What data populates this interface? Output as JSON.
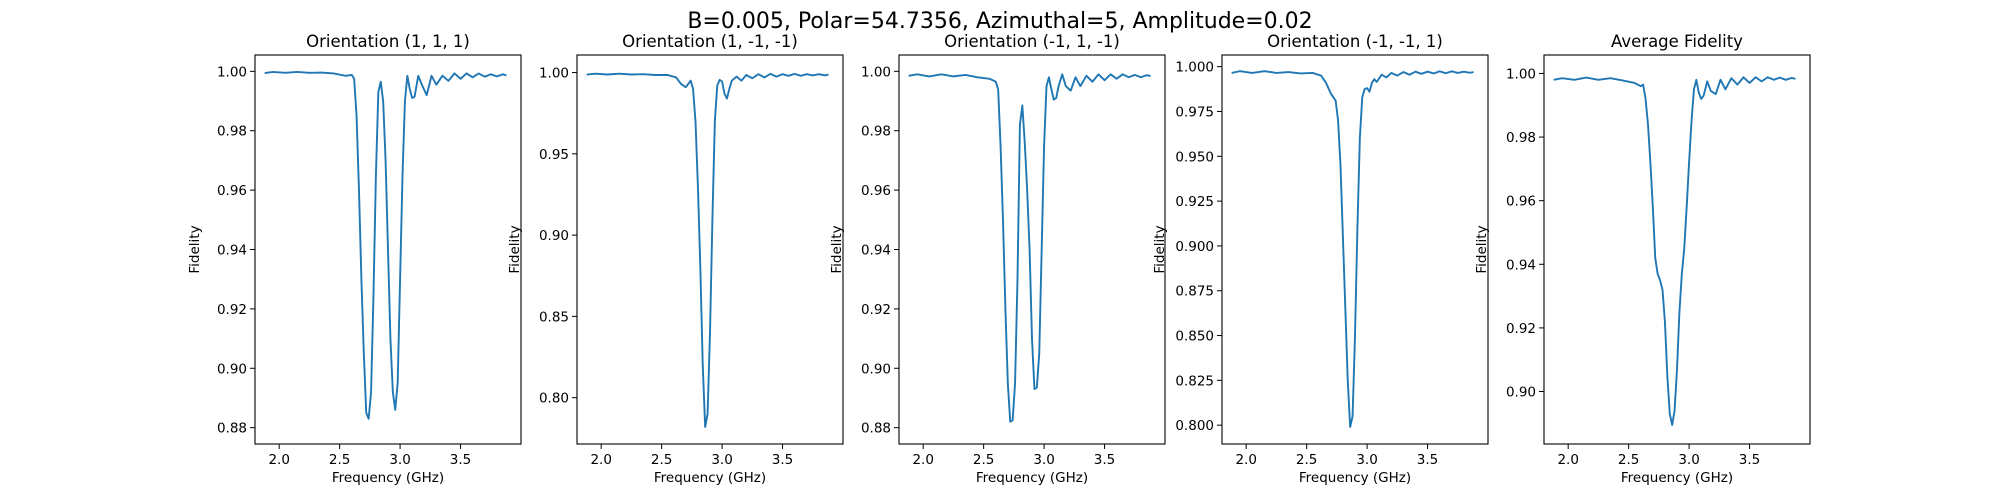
{
  "figure": {
    "suptitle": "B=0.005, Polar=54.7356, Azimuthal=5, Amplitude=0.02"
  },
  "chart_data": [
    {
      "type": "line",
      "title": "Orientation (1, 1, 1)",
      "xlabel": "Frequency (GHz)",
      "ylabel": "Fidelity",
      "xlim": [
        1.8,
        4.0
      ],
      "ylim": [
        0.8745,
        1.0055
      ],
      "xticks": [
        2.0,
        2.5,
        3.0,
        3.5
      ],
      "xtick_labels": [
        "2.0",
        "2.5",
        "3.0",
        "3.5"
      ],
      "yticks": [
        0.88,
        0.9,
        0.92,
        0.94,
        0.96,
        0.98,
        1.0
      ],
      "ytick_labels": [
        "0.88",
        "0.90",
        "0.92",
        "0.94",
        "0.96",
        "0.98",
        "1.00"
      ],
      "grid": false,
      "series": [
        {
          "color": "#1f77b4",
          "x": [
            1.88,
            1.95,
            2.05,
            2.15,
            2.25,
            2.35,
            2.45,
            2.55,
            2.6,
            2.62,
            2.64,
            2.66,
            2.68,
            2.7,
            2.72,
            2.74,
            2.76,
            2.78,
            2.8,
            2.82,
            2.84,
            2.86,
            2.88,
            2.9,
            2.92,
            2.94,
            2.96,
            2.98,
            3.0,
            3.02,
            3.04,
            3.06,
            3.08,
            3.1,
            3.12,
            3.15,
            3.18,
            3.22,
            3.26,
            3.3,
            3.35,
            3.4,
            3.45,
            3.5,
            3.55,
            3.6,
            3.65,
            3.7,
            3.75,
            3.8,
            3.85,
            3.88
          ],
          "y": [
            0.9994,
            0.9998,
            0.9995,
            0.9998,
            0.9995,
            0.9996,
            0.9993,
            0.9985,
            0.9988,
            0.9975,
            0.985,
            0.96,
            0.93,
            0.905,
            0.885,
            0.883,
            0.892,
            0.925,
            0.965,
            0.993,
            0.9965,
            0.99,
            0.97,
            0.94,
            0.91,
            0.892,
            0.886,
            0.895,
            0.93,
            0.965,
            0.99,
            0.9985,
            0.994,
            0.991,
            0.9915,
            0.9985,
            0.9955,
            0.992,
            0.9985,
            0.9955,
            0.9985,
            0.9968,
            0.9993,
            0.9975,
            0.9993,
            0.998,
            0.9993,
            0.9982,
            0.999,
            0.9983,
            0.999,
            0.9986
          ]
        }
      ]
    },
    {
      "type": "line",
      "title": "Orientation (1, -1, -1)",
      "xlabel": "Frequency (GHz)",
      "ylabel": "Fidelity",
      "xlim": [
        1.8,
        4.0
      ],
      "ylim": [
        0.7715,
        1.0108
      ],
      "xticks": [
        2.0,
        2.5,
        3.0,
        3.5
      ],
      "xtick_labels": [
        "2.0",
        "2.5",
        "3.0",
        "3.5"
      ],
      "yticks": [
        0.8,
        0.85,
        0.9,
        0.95,
        1.0
      ],
      "ytick_labels": [
        "0.80",
        "0.85",
        "0.90",
        "0.95",
        "1.00"
      ],
      "grid": false,
      "series": [
        {
          "color": "#1f77b4",
          "x": [
            1.88,
            1.95,
            2.05,
            2.15,
            2.25,
            2.35,
            2.45,
            2.55,
            2.62,
            2.66,
            2.7,
            2.74,
            2.76,
            2.78,
            2.8,
            2.82,
            2.84,
            2.86,
            2.88,
            2.9,
            2.92,
            2.94,
            2.96,
            2.98,
            3.0,
            3.02,
            3.04,
            3.06,
            3.08,
            3.12,
            3.16,
            3.2,
            3.25,
            3.3,
            3.35,
            3.4,
            3.45,
            3.5,
            3.55,
            3.6,
            3.65,
            3.7,
            3.75,
            3.8,
            3.85,
            3.88
          ],
          "y": [
            0.9988,
            0.9993,
            0.9988,
            0.9993,
            0.9988,
            0.999,
            0.9985,
            0.9985,
            0.997,
            0.993,
            0.991,
            0.995,
            0.99,
            0.97,
            0.93,
            0.88,
            0.82,
            0.782,
            0.79,
            0.84,
            0.91,
            0.97,
            0.992,
            0.9955,
            0.9945,
            0.987,
            0.984,
            0.99,
            0.995,
            0.9975,
            0.995,
            0.9985,
            0.9965,
            0.999,
            0.997,
            0.9992,
            0.9975,
            0.999,
            0.998,
            0.9992,
            0.998,
            0.999,
            0.9982,
            0.999,
            0.9983,
            0.9987
          ]
        }
      ]
    },
    {
      "type": "line",
      "title": "Orientation (-1, 1, -1)",
      "xlabel": "Frequency (GHz)",
      "ylabel": "Fidelity",
      "xlim": [
        1.8,
        4.0
      ],
      "ylim": [
        0.8745,
        1.0055
      ],
      "xticks": [
        2.0,
        2.5,
        3.0,
        3.5
      ],
      "xtick_labels": [
        "2.0",
        "2.5",
        "3.0",
        "3.5"
      ],
      "yticks": [
        0.88,
        0.9,
        0.92,
        0.94,
        0.96,
        0.98,
        1.0
      ],
      "ytick_labels": [
        "0.88",
        "0.90",
        "0.92",
        "0.94",
        "0.96",
        "0.98",
        "1.00"
      ],
      "grid": false,
      "series": [
        {
          "color": "#1f77b4",
          "x": [
            1.88,
            1.95,
            2.05,
            2.15,
            2.25,
            2.35,
            2.45,
            2.55,
            2.6,
            2.62,
            2.64,
            2.66,
            2.68,
            2.7,
            2.72,
            2.74,
            2.76,
            2.78,
            2.8,
            2.82,
            2.84,
            2.86,
            2.88,
            2.9,
            2.92,
            2.94,
            2.96,
            2.98,
            3.0,
            3.02,
            3.04,
            3.06,
            3.08,
            3.1,
            3.12,
            3.15,
            3.18,
            3.22,
            3.26,
            3.3,
            3.35,
            3.4,
            3.45,
            3.5,
            3.55,
            3.6,
            3.65,
            3.7,
            3.75,
            3.8,
            3.85,
            3.88
          ],
          "y": [
            0.9985,
            0.999,
            0.9983,
            0.999,
            0.9983,
            0.9988,
            0.998,
            0.9975,
            0.9965,
            0.994,
            0.975,
            0.95,
            0.92,
            0.895,
            0.882,
            0.8825,
            0.895,
            0.93,
            0.982,
            0.9885,
            0.976,
            0.96,
            0.94,
            0.91,
            0.893,
            0.8935,
            0.905,
            0.94,
            0.975,
            0.995,
            0.998,
            0.994,
            0.9905,
            0.991,
            0.995,
            0.999,
            0.995,
            0.9935,
            0.998,
            0.995,
            0.9985,
            0.9965,
            0.999,
            0.997,
            0.999,
            0.9975,
            0.999,
            0.998,
            0.9988,
            0.998,
            0.9987,
            0.9984
          ]
        }
      ]
    },
    {
      "type": "line",
      "title": "Orientation (-1, -1, 1)",
      "xlabel": "Frequency (GHz)",
      "ylabel": "Fidelity",
      "xlim": [
        1.8,
        4.0
      ],
      "ylim": [
        0.7895,
        1.0065
      ],
      "xticks": [
        2.0,
        2.5,
        3.0,
        3.5
      ],
      "xtick_labels": [
        "2.0",
        "2.5",
        "3.0",
        "3.5"
      ],
      "yticks": [
        0.8,
        0.825,
        0.85,
        0.875,
        0.9,
        0.925,
        0.95,
        0.975,
        1.0
      ],
      "ytick_labels": [
        "0.800",
        "0.825",
        "0.850",
        "0.875",
        "0.900",
        "0.925",
        "0.950",
        "0.975",
        "1.000"
      ],
      "grid": false,
      "series": [
        {
          "color": "#1f77b4",
          "x": [
            1.88,
            1.95,
            2.05,
            2.15,
            2.25,
            2.35,
            2.45,
            2.55,
            2.62,
            2.66,
            2.7,
            2.74,
            2.76,
            2.78,
            2.8,
            2.82,
            2.84,
            2.86,
            2.88,
            2.9,
            2.92,
            2.94,
            2.96,
            2.98,
            3.0,
            3.02,
            3.04,
            3.06,
            3.08,
            3.12,
            3.16,
            3.2,
            3.25,
            3.3,
            3.35,
            3.4,
            3.45,
            3.5,
            3.55,
            3.6,
            3.65,
            3.7,
            3.75,
            3.8,
            3.85,
            3.88
          ],
          "y": [
            0.9965,
            0.9975,
            0.9965,
            0.9975,
            0.9965,
            0.997,
            0.9962,
            0.9965,
            0.995,
            0.991,
            0.985,
            0.981,
            0.97,
            0.945,
            0.905,
            0.865,
            0.825,
            0.799,
            0.805,
            0.85,
            0.91,
            0.96,
            0.983,
            0.9875,
            0.988,
            0.986,
            0.991,
            0.993,
            0.9915,
            0.9955,
            0.994,
            0.9965,
            0.995,
            0.997,
            0.9955,
            0.9972,
            0.996,
            0.9972,
            0.9962,
            0.9974,
            0.9963,
            0.9974,
            0.9965,
            0.9972,
            0.9966,
            0.997
          ]
        }
      ]
    },
    {
      "type": "line",
      "title": "Average Fidelity",
      "xlabel": "Frequency (GHz)",
      "ylabel": "Fidelity",
      "xlim": [
        1.8,
        4.0
      ],
      "ylim": [
        0.8835,
        1.0058
      ],
      "xticks": [
        2.0,
        2.5,
        3.0,
        3.5
      ],
      "xtick_labels": [
        "2.0",
        "2.5",
        "3.0",
        "3.5"
      ],
      "yticks": [
        0.9,
        0.92,
        0.94,
        0.96,
        0.98,
        1.0
      ],
      "ytick_labels": [
        "0.90",
        "0.92",
        "0.94",
        "0.96",
        "0.98",
        "1.00"
      ],
      "grid": false,
      "series": [
        {
          "color": "#1f77b4",
          "x": [
            1.88,
            1.95,
            2.05,
            2.15,
            2.25,
            2.35,
            2.45,
            2.55,
            2.6,
            2.62,
            2.64,
            2.66,
            2.68,
            2.7,
            2.72,
            2.74,
            2.76,
            2.78,
            2.8,
            2.82,
            2.84,
            2.86,
            2.88,
            2.9,
            2.92,
            2.94,
            2.96,
            2.98,
            3.0,
            3.02,
            3.04,
            3.06,
            3.08,
            3.1,
            3.12,
            3.15,
            3.18,
            3.22,
            3.26,
            3.3,
            3.35,
            3.4,
            3.45,
            3.5,
            3.55,
            3.6,
            3.65,
            3.7,
            3.75,
            3.8,
            3.85,
            3.88
          ],
          "y": [
            0.998,
            0.9985,
            0.998,
            0.9987,
            0.998,
            0.9985,
            0.9978,
            0.997,
            0.996,
            0.9965,
            0.992,
            0.984,
            0.972,
            0.958,
            0.942,
            0.937,
            0.935,
            0.932,
            0.922,
            0.905,
            0.893,
            0.8895,
            0.894,
            0.907,
            0.925,
            0.937,
            0.945,
            0.958,
            0.972,
            0.985,
            0.995,
            0.998,
            0.994,
            0.992,
            0.993,
            0.9975,
            0.9945,
            0.9935,
            0.998,
            0.995,
            0.9985,
            0.9965,
            0.9988,
            0.997,
            0.9988,
            0.9975,
            0.9988,
            0.998,
            0.9987,
            0.998,
            0.9986,
            0.9983
          ]
        }
      ]
    }
  ]
}
